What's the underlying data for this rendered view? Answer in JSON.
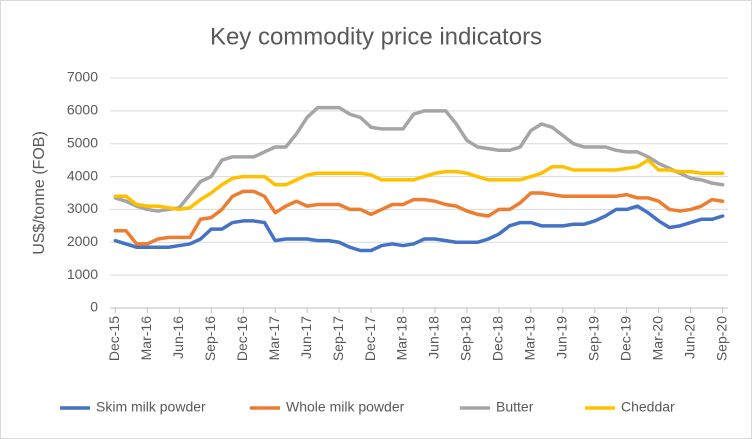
{
  "chart_data": {
    "type": "line",
    "title": "Key commodity price indicators",
    "y_label": "US$/tonne (FOB)",
    "categories": [
      "Dec-15",
      null,
      null,
      "Mar-16",
      null,
      null,
      "Jun-16",
      null,
      null,
      "Sep-16",
      null,
      null,
      "Dec-16",
      null,
      null,
      "Mar-17",
      null,
      null,
      "Jun-17",
      null,
      null,
      "Sep-17",
      null,
      null,
      "Dec-17",
      null,
      null,
      "Mar-18",
      null,
      null,
      "Jun-18",
      null,
      null,
      "Sep-18",
      null,
      null,
      "Dec-18",
      null,
      null,
      "Mar-19",
      null,
      null,
      "Jun-19",
      null,
      null,
      "Sep-19",
      null,
      null,
      "Dec-19",
      null,
      null,
      "Mar-20",
      null,
      null,
      "Jun-20",
      null,
      null,
      "Sep-20"
    ],
    "series": [
      {
        "name": "Skim milk powder",
        "color": "#4472c4",
        "values": [
          2050,
          1950,
          1850,
          1850,
          1850,
          1850,
          1900,
          1950,
          2100,
          2400,
          2400,
          2600,
          2650,
          2650,
          2600,
          2050,
          2100,
          2100,
          2100,
          2050,
          2050,
          2000,
          1850,
          1750,
          1750,
          1900,
          1950,
          1900,
          1950,
          2100,
          2100,
          2050,
          2000,
          2000,
          2000,
          2100,
          2250,
          2500,
          2600,
          2600,
          2500,
          2500,
          2500,
          2550,
          2550,
          2650,
          2800,
          3000,
          3000,
          3100,
          2900,
          2650,
          2450,
          2500,
          2600,
          2700,
          2700,
          2800
        ]
      },
      {
        "name": "Whole milk powder",
        "color": "#ed7d31",
        "values": [
          2350,
          2350,
          1950,
          1950,
          2100,
          2150,
          2150,
          2150,
          2700,
          2750,
          3000,
          3400,
          3550,
          3550,
          3400,
          2900,
          3100,
          3250,
          3100,
          3150,
          3150,
          3150,
          3000,
          3000,
          2850,
          3000,
          3150,
          3150,
          3300,
          3300,
          3250,
          3150,
          3100,
          2950,
          2850,
          2800,
          3000,
          3000,
          3200,
          3500,
          3500,
          3450,
          3400,
          3400,
          3400,
          3400,
          3400,
          3400,
          3450,
          3350,
          3350,
          3250,
          3000,
          2950,
          3000,
          3100,
          3300,
          3250
        ]
      },
      {
        "name": "Butter",
        "color": "#a5a5a5",
        "values": [
          3350,
          3250,
          3100,
          3000,
          2950,
          3000,
          3050,
          3450,
          3850,
          4000,
          4500,
          4600,
          4600,
          4600,
          4750,
          4900,
          4900,
          5300,
          5800,
          6100,
          6100,
          6100,
          5900,
          5800,
          5500,
          5450,
          5450,
          5450,
          5900,
          6000,
          6000,
          6000,
          5600,
          5100,
          4900,
          4850,
          4800,
          4800,
          4900,
          5400,
          5600,
          5500,
          5250,
          5000,
          4900,
          4900,
          4900,
          4800,
          4750,
          4750,
          4600,
          4400,
          4250,
          4100,
          3950,
          3900,
          3800,
          3750
        ]
      },
      {
        "name": "Cheddar",
        "color": "#ffc000",
        "values": [
          3400,
          3400,
          3150,
          3100,
          3100,
          3050,
          3000,
          3050,
          3300,
          3500,
          3750,
          3950,
          4000,
          4000,
          4000,
          3750,
          3750,
          3900,
          4050,
          4100,
          4100,
          4100,
          4100,
          4100,
          4050,
          3900,
          3900,
          3900,
          3900,
          4000,
          4100,
          4150,
          4150,
          4100,
          4000,
          3900,
          3900,
          3900,
          3900,
          4000,
          4100,
          4300,
          4300,
          4200,
          4200,
          4200,
          4200,
          4200,
          4250,
          4300,
          4500,
          4200,
          4200,
          4150,
          4150,
          4100,
          4100,
          4100
        ]
      }
    ],
    "ylim": [
      0,
      7000
    ],
    "yticks": [
      0,
      1000,
      2000,
      3000,
      4000,
      5000,
      6000,
      7000
    ],
    "grid": true,
    "legend": "bottom"
  }
}
